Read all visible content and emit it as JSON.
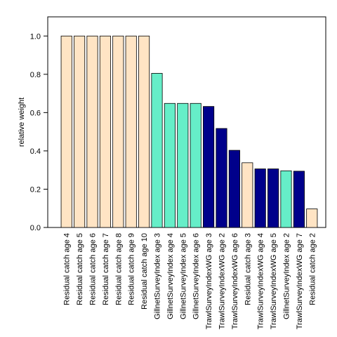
{
  "chart_data": {
    "type": "bar",
    "title": "",
    "xlabel": "",
    "ylabel": "relative weight",
    "ylim": [
      0,
      1.1
    ],
    "yticks": [
      "0.0",
      "0.2",
      "0.4",
      "0.6",
      "0.8",
      "1.0"
    ],
    "grid": false,
    "categories": [
      "Residual catch age 4",
      "Residual catch age 5",
      "Residual catch age 6",
      "Residual catch age 7",
      "Residual catch age 8",
      "Residual catch age 9",
      "Residual catch age 10",
      "GillnetSurveyIndex age 3",
      "GillnetSurveyIndex age 4",
      "GillnetSurveyIndex age 5",
      "GillnetSurveyIndex age 6",
      "TrawlSurveyIndexWG age 3",
      "TrawlSurveyIndexWG age 2",
      "TrawlSurveyIndexWG age 6",
      "Residual catch age 3",
      "TrawlSurveyIndexWG age 4",
      "TrawlSurveyIndexWG age 5",
      "GillnetSurveyIndex age 2",
      "TrawlSurveyIndexWG age 7",
      "Residual catch age 2"
    ],
    "values": [
      1.0,
      1.0,
      1.0,
      1.0,
      1.0,
      1.0,
      1.0,
      0.805,
      0.648,
      0.648,
      0.648,
      0.632,
      0.517,
      0.403,
      0.338,
      0.306,
      0.306,
      0.296,
      0.294,
      0.097
    ],
    "bar_colors": [
      "#ffe4c4",
      "#ffe4c4",
      "#ffe4c4",
      "#ffe4c4",
      "#ffe4c4",
      "#ffe4c4",
      "#ffe4c4",
      "#66eec8",
      "#66eec8",
      "#66eec8",
      "#66eec8",
      "#00008b",
      "#00008b",
      "#00008b",
      "#ffe4c4",
      "#00008b",
      "#00008b",
      "#66eec8",
      "#00008b",
      "#ffe4c4"
    ]
  }
}
